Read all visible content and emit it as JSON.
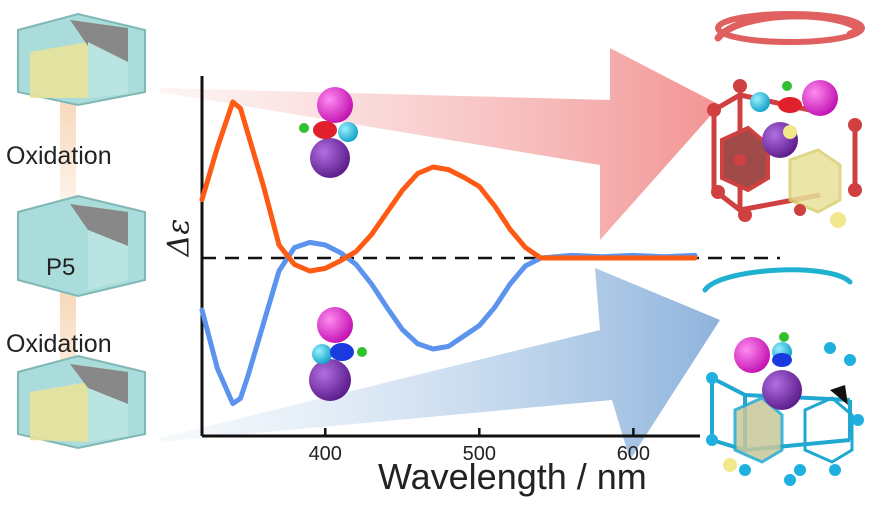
{
  "labels": {
    "oxidation_top": "Oxidation",
    "oxidation_bottom": "Oxidation",
    "p5": "P5"
  },
  "colors": {
    "red_series": "#ff5a14",
    "blue_series": "#5b93ee",
    "red_arrow": "#f08a8a",
    "blue_arrow": "#8fb3dd",
    "prism_face": "#a9dcda",
    "prism_yellow": "#e8e29a",
    "magenta_atom": "#e020c8",
    "purple_atom": "#7a2ea8",
    "cyan_atom": "#2ac0e0",
    "green_atom": "#30c030"
  },
  "chart_data": {
    "type": "line",
    "xlabel": "Wavelength / nm",
    "ylabel": "Δε",
    "xlim": [
      320,
      640
    ],
    "ylim": [
      -1.25,
      1.25
    ],
    "xticks": [
      400,
      500,
      600
    ],
    "tick_labels": [
      "400",
      "500",
      "600"
    ],
    "zero_line": "dashed",
    "series": [
      {
        "color": "red",
        "x": [
          320,
          330,
          340,
          345,
          350,
          360,
          370,
          380,
          390,
          400,
          410,
          420,
          430,
          440,
          450,
          460,
          470,
          480,
          490,
          500,
          510,
          520,
          530,
          540,
          560,
          580,
          600,
          620,
          640
        ],
        "values": [
          0.45,
          0.85,
          1.2,
          1.15,
          0.95,
          0.55,
          0.1,
          -0.05,
          -0.1,
          -0.08,
          -0.02,
          0.05,
          0.18,
          0.35,
          0.52,
          0.65,
          0.7,
          0.68,
          0.62,
          0.55,
          0.4,
          0.22,
          0.08,
          0.0,
          0.0,
          0.0,
          0.0,
          0.0,
          0.0
        ]
      },
      {
        "color": "blue",
        "x": [
          320,
          330,
          340,
          345,
          350,
          360,
          370,
          380,
          390,
          400,
          410,
          420,
          430,
          440,
          450,
          460,
          470,
          480,
          490,
          500,
          510,
          520,
          530,
          540,
          560,
          580,
          600,
          620,
          640
        ],
        "values": [
          -0.4,
          -0.85,
          -1.12,
          -1.08,
          -0.9,
          -0.5,
          -0.1,
          0.08,
          0.12,
          0.1,
          0.04,
          -0.05,
          -0.2,
          -0.38,
          -0.55,
          -0.66,
          -0.7,
          -0.68,
          -0.6,
          -0.52,
          -0.38,
          -0.2,
          -0.06,
          0.0,
          0.02,
          0.01,
          0.02,
          0.01,
          0.02
        ]
      }
    ]
  }
}
